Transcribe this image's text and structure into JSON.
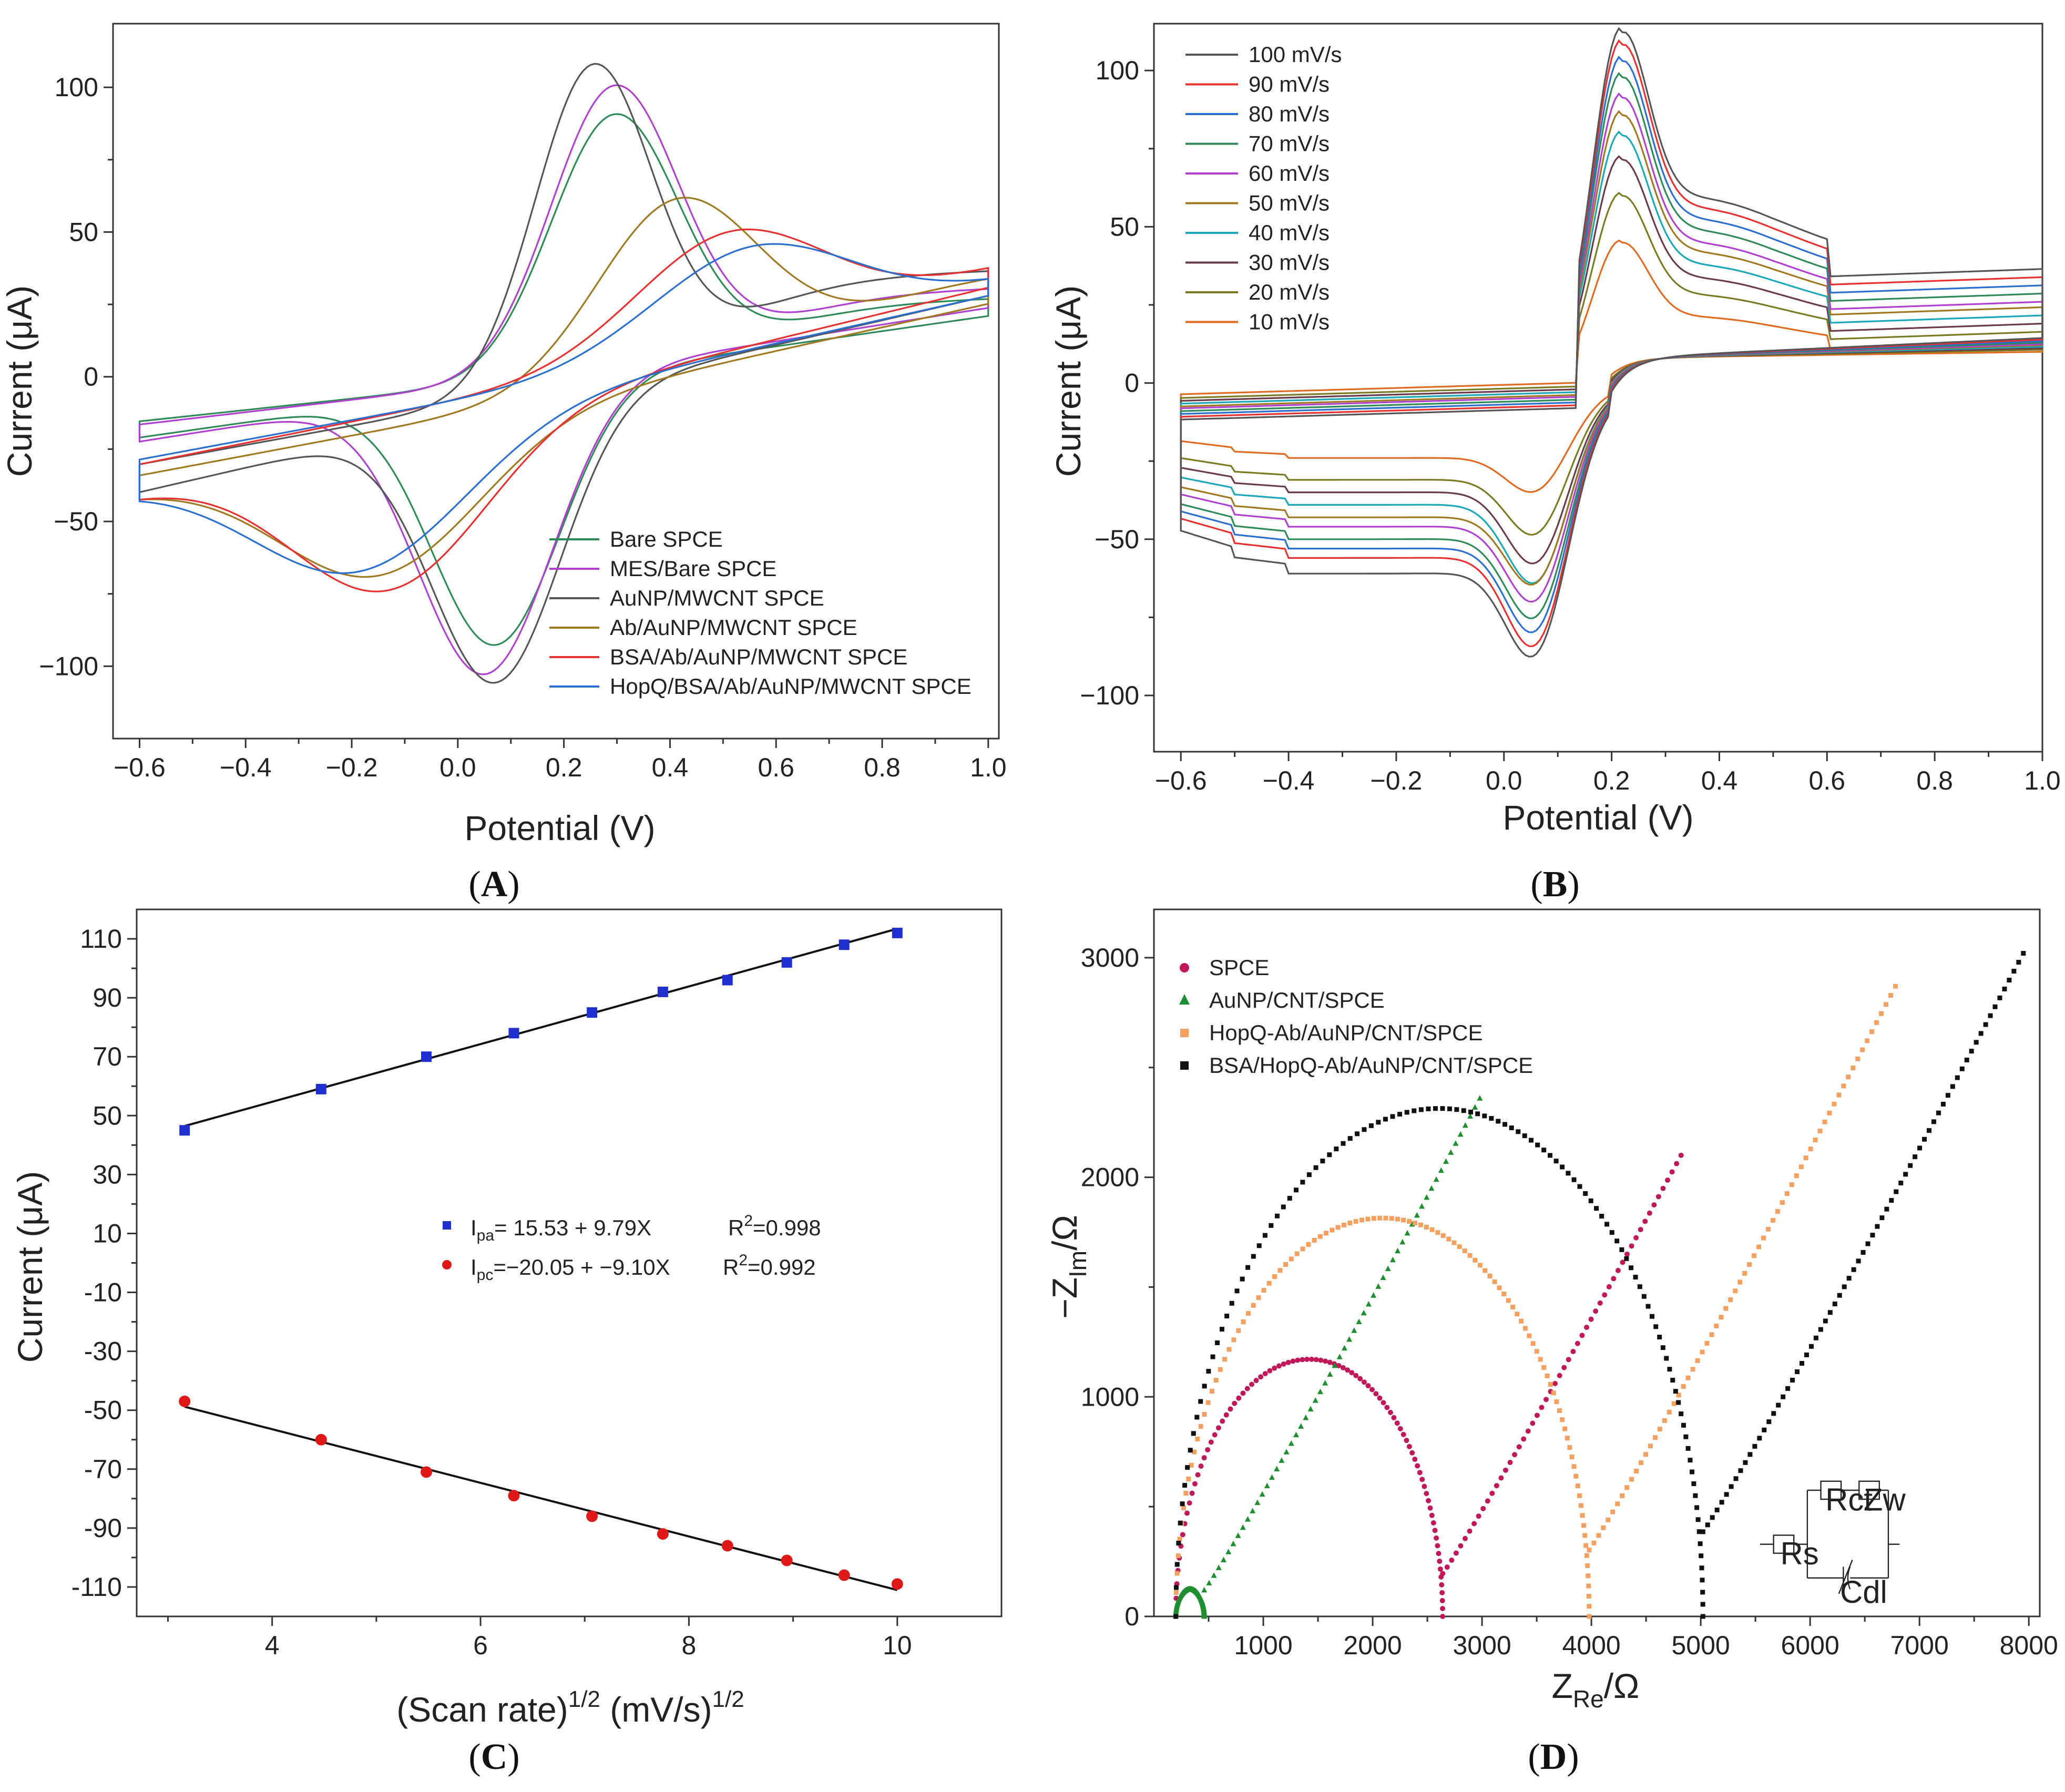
{
  "chart_data": [
    {
      "id": "A",
      "type": "line",
      "panel_label": "A",
      "xlabel": "Potential (V)",
      "ylabel": "Current (μA)",
      "xlim": [
        -0.65,
        1.02
      ],
      "ylim": [
        -125,
        122
      ],
      "xticks": [
        -0.6,
        -0.4,
        -0.2,
        0.0,
        0.2,
        0.4,
        0.6,
        0.8,
        1.0
      ],
      "xtick_labels": [
        "−0.6",
        "−0.4",
        "−0.2",
        "0.0",
        "0.2",
        "0.4",
        "0.6",
        "0.8",
        "1.0"
      ],
      "yticks": [
        -100,
        -50,
        0,
        50,
        100
      ],
      "ytick_labels": [
        "−100",
        "−50",
        "0",
        "50",
        "100"
      ],
      "legend_position": "bottom-right",
      "series": [
        {
          "name": "Bare SPCE",
          "color": "#2e8b57",
          "ipa": 91,
          "epa": 0.3,
          "ipc": -91,
          "epc": 0.07,
          "start_upper": -28,
          "end_upper": 29,
          "start_lower": -30,
          "end_lower": 30,
          "tail_a": 30
        },
        {
          "name": "MES/Bare SPCE",
          "color": "#b040d0",
          "ipa": 101,
          "epa": 0.3,
          "ipc": -101,
          "epc": 0.05,
          "start_upper": -30,
          "end_upper": 32,
          "start_lower": -32,
          "end_lower": 34,
          "tail_a": 34
        },
        {
          "name": "AuNP/MWCNT SPCE",
          "color": "#555555",
          "ipa": 108,
          "epa": 0.26,
          "ipc": -100,
          "epc": 0.07,
          "start_upper": -55,
          "end_upper": 42,
          "start_lower": -57,
          "end_lower": 40,
          "tail_a": 40
        },
        {
          "name": "Ab/AuNP/MWCNT SPCE",
          "color": "#a07820",
          "ipa": 62,
          "epa": 0.43,
          "ipc": -58,
          "epc": -0.16,
          "start_upper": -62,
          "end_upper": 38,
          "start_lower": -57,
          "end_lower": 36,
          "tail_a": 42
        },
        {
          "name": "BSA/Ab/AuNP/MWCNT SPCE",
          "color": "#e83030",
          "ipa": 52,
          "epa": 0.55,
          "ipc": -64,
          "epc": -0.14,
          "start_upper": -55,
          "end_upper": 52,
          "start_lower": -58,
          "end_lower": 44,
          "tail_a": 50
        },
        {
          "name": "HopQ/BSA/Ab/AuNP/MWCNT SPCE",
          "color": "#2a6fd0",
          "ipa": 47,
          "epa": 0.6,
          "ipc": -57,
          "epc": -0.2,
          "start_upper": -52,
          "end_upper": 47,
          "start_lower": -54,
          "end_lower": 40,
          "tail_a": 46
        }
      ]
    },
    {
      "id": "B",
      "type": "line",
      "panel_label": "B",
      "xlabel": "Potential (V)",
      "ylabel": "Current (μA)",
      "xlim": [
        -0.65,
        1.0
      ],
      "ylim": [
        -118,
        115
      ],
      "xticks": [
        -0.6,
        -0.4,
        -0.2,
        0.0,
        0.2,
        0.4,
        0.6,
        0.8,
        1.0
      ],
      "xtick_labels": [
        "−0.6",
        "−0.4",
        "−0.2",
        "0.0",
        "0.2",
        "0.4",
        "0.6",
        "0.8",
        "1.0"
      ],
      "yticks": [
        -100,
        -50,
        0,
        50,
        100
      ],
      "ytick_labels": [
        "−100",
        "−50",
        "0",
        "50",
        "100"
      ],
      "legend_position": "top-left",
      "series": [
        {
          "name": "100 mV/s",
          "color": "#555555",
          "ipa": 100,
          "ipc": -98,
          "base_upper": 39,
          "base_lower": -61
        },
        {
          "name": "90 mV/s",
          "color": "#e83030",
          "ipa": 96,
          "ipc": -94,
          "base_upper": 36,
          "base_lower": -56
        },
        {
          "name": "80 mV/s",
          "color": "#2a6fd0",
          "ipa": 91,
          "ipc": -89,
          "base_upper": 33,
          "base_lower": -53
        },
        {
          "name": "70 mV/s",
          "color": "#2e8b57",
          "ipa": 86,
          "ipc": -84,
          "base_upper": 30,
          "base_lower": -50
        },
        {
          "name": "60 mV/s",
          "color": "#b040d0",
          "ipa": 80,
          "ipc": -78,
          "base_upper": 27,
          "base_lower": -46
        },
        {
          "name": "50 mV/s",
          "color": "#a07820",
          "ipa": 75,
          "ipc": -72,
          "base_upper": 25,
          "base_lower": -43
        },
        {
          "name": "40 mV/s",
          "color": "#1aa7b8",
          "ipa": 69,
          "ipc": -71,
          "base_upper": 22,
          "base_lower": -39
        },
        {
          "name": "30 mV/s",
          "color": "#6b3a4a",
          "ipa": 62,
          "ipc": -64,
          "base_upper": 19,
          "base_lower": -35
        },
        {
          "name": "20 mV/s",
          "color": "#7a7a22",
          "ipa": 52,
          "ipc": -54,
          "base_upper": 16,
          "base_lower": -31
        },
        {
          "name": "10 mV/s",
          "color": "#e06a20",
          "ipa": 39,
          "ipc": -39,
          "base_upper": 12,
          "base_lower": -24
        }
      ]
    },
    {
      "id": "C",
      "type": "scatter",
      "panel_label": "C",
      "xlabel": "(Scan rate)",
      "xlabel_sup": "1/2",
      "xlabel_unit": "(mV/s)",
      "xlabel_unit_sup": "1/2",
      "ylabel": "Current (μA)",
      "xlim": [
        2.7,
        11.0
      ],
      "ylim": [
        -120,
        120
      ],
      "xticks": [
        4,
        6,
        8,
        10
      ],
      "xtick_labels": [
        "4",
        "6",
        "8",
        "10"
      ],
      "yticks": [
        110,
        90,
        70,
        50,
        30,
        10,
        -10,
        -30,
        -50,
        -70,
        -90,
        -110
      ],
      "ytick_labels": [
        "110",
        "90",
        "70",
        "50",
        "30",
        "10",
        "-10",
        "-30",
        "-50",
        "-70",
        "-90",
        "-110"
      ],
      "x": [
        3.16,
        4.47,
        5.48,
        6.32,
        7.07,
        7.75,
        8.37,
        8.94,
        9.49,
        10.0
      ],
      "series": [
        {
          "name": "Ipa",
          "color": "#1f2fd0",
          "marker": "square",
          "values": [
            45,
            59,
            70,
            78,
            85,
            92,
            96,
            102,
            108,
            112
          ],
          "fit_intercept": 15.53,
          "fit_slope": 9.79,
          "legend_symbol": "I",
          "legend_sub": "pa",
          "legend_eq": "= 15.53 + 9.79X",
          "legend_r2_prefix": "R",
          "legend_r2_sup": "2",
          "legend_r2_value": "=0.998"
        },
        {
          "name": "Ipc",
          "color": "#e01818",
          "marker": "circle",
          "values": [
            -47,
            -60,
            -71,
            -79,
            -86,
            -92,
            -96,
            -101,
            -106,
            -109
          ],
          "fit_intercept": -20.05,
          "fit_slope": -9.1,
          "legend_symbol": "I",
          "legend_sub": "pc",
          "legend_eq": "=−20.05 + −9.10X",
          "legend_r2_prefix": "R",
          "legend_r2_sup": "2",
          "legend_r2_value": "=0.992"
        }
      ],
      "legend_position": "center"
    },
    {
      "id": "D",
      "type": "scatter",
      "panel_label": "D",
      "xlabel": "Z",
      "xlabel_sub": "Re",
      "xlabel_unit": "/Ω",
      "ylabel": "−Z",
      "ylabel_sub": "Im",
      "ylabel_unit": "/Ω",
      "xlim": [
        0,
        8100
      ],
      "ylim": [
        0,
        3220
      ],
      "xticks": [
        1000,
        2000,
        3000,
        4000,
        5000,
        6000,
        7000,
        8000
      ],
      "xtick_labels": [
        "1000",
        "2000",
        "3000",
        "4000",
        "5000",
        "6000",
        "7000",
        "8000"
      ],
      "yticks": [
        0,
        1000,
        2000,
        3000
      ],
      "ytick_labels": [
        "0",
        "1000",
        "2000",
        "3000"
      ],
      "legend_position": "top-left",
      "series": [
        {
          "name": "SPCE",
          "color": "#c0185a",
          "marker": "circle",
          "rs": 200,
          "rct": 2640,
          "tail_end_x": 4820,
          "points": 140
        },
        {
          "name": "AuNP/CNT/SPCE",
          "color": "#1e8f2e",
          "marker": "triangle",
          "rs": 200,
          "rct": 460,
          "tail_end_x": 2980,
          "points": 150
        },
        {
          "name": "HopQ-Ab/AuNP/CNT/SPCE",
          "color": "#f4a060",
          "marker": "square",
          "rs": 200,
          "rct": 3980,
          "tail_end_x": 6780,
          "points": 170
        },
        {
          "name": "BSA/HopQ-Ab/AuNP/CNT/SPCE",
          "color": "#111111",
          "marker": "square",
          "rs": 200,
          "rct": 5020,
          "tail_end_x": 7950,
          "points": 180
        }
      ],
      "circuit_labels": {
        "rs": "Rs",
        "rct": "Rct",
        "zw": "Zw",
        "cdl": "Cdl"
      }
    }
  ]
}
